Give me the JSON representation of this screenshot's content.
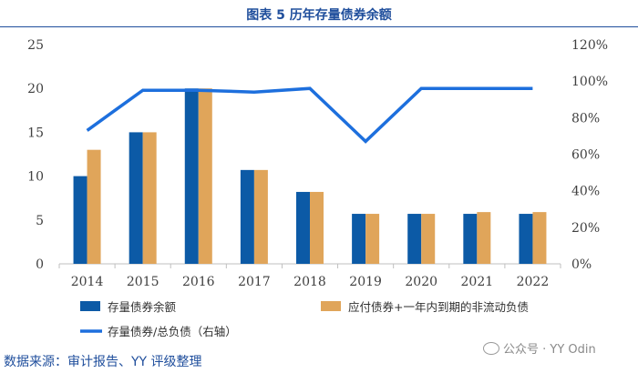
{
  "title": "图表 5 历年存量债券余额",
  "source": "数据来源：审计报告、YY 评级整理",
  "watermark": "公众号 · YY Odin",
  "colors": {
    "bar_stock": "#0c5aa6",
    "bar_liab": "#e0a55a",
    "line": "#1d6fdd",
    "text": "#1f4e9c"
  },
  "chart_data": {
    "type": "bar",
    "categories": [
      "2014",
      "2015",
      "2016",
      "2017",
      "2018",
      "2019",
      "2020",
      "2021",
      "2022"
    ],
    "series": [
      {
        "name": "存量债券余额",
        "type": "bar",
        "axis": "left",
        "values": [
          10.0,
          15.0,
          20.0,
          10.7,
          8.2,
          5.7,
          5.7,
          5.7,
          5.7
        ]
      },
      {
        "name": "应付债券+一年内到期的非流动负债",
        "type": "bar",
        "axis": "left",
        "values": [
          13.0,
          15.0,
          20.0,
          10.7,
          8.2,
          5.7,
          5.7,
          5.9,
          5.9
        ]
      },
      {
        "name": "存量债券/总负债（右轴）",
        "type": "line",
        "axis": "right",
        "values": [
          73,
          95,
          95,
          94,
          96,
          67,
          96,
          96,
          96
        ]
      }
    ],
    "y_left": {
      "min": 0,
      "max": 25,
      "ticks": [
        "0",
        "5",
        "10",
        "15",
        "20",
        "25"
      ]
    },
    "y_right": {
      "min": 0,
      "max": 120,
      "ticks": [
        "0%",
        "20%",
        "40%",
        "60%",
        "80%",
        "100%",
        "120%"
      ]
    },
    "grid": false,
    "legend": "bottom"
  }
}
